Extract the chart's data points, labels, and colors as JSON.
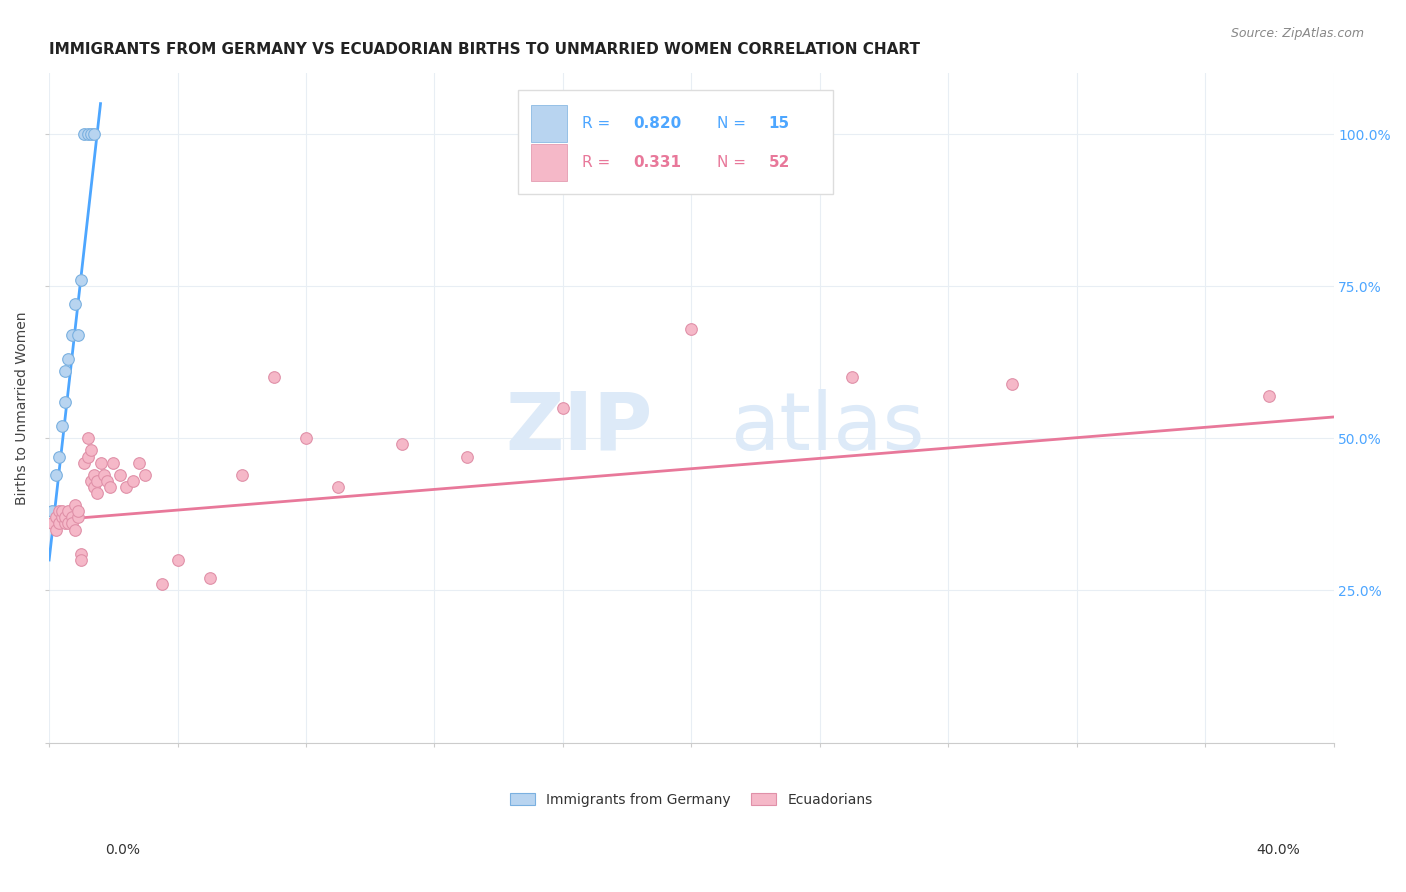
{
  "title": "IMMIGRANTS FROM GERMANY VS ECUADORIAN BIRTHS TO UNMARRIED WOMEN CORRELATION CHART",
  "source": "Source: ZipAtlas.com",
  "ylabel": "Births to Unmarried Women",
  "legend_stats_blue": {
    "R": "0.820",
    "N": "15"
  },
  "legend_stats_pink": {
    "R": "0.331",
    "N": "52"
  },
  "blue_scatter_x": [
    0.001,
    0.002,
    0.003,
    0.004,
    0.005,
    0.005,
    0.006,
    0.007,
    0.008,
    0.009,
    0.01,
    0.011,
    0.012,
    0.013,
    0.014
  ],
  "blue_scatter_y": [
    0.38,
    0.44,
    0.47,
    0.52,
    0.56,
    0.61,
    0.63,
    0.67,
    0.72,
    0.67,
    0.76,
    1.0,
    1.0,
    1.0,
    1.0
  ],
  "blue_line_x": [
    0.0,
    0.016
  ],
  "blue_line_y": [
    0.3,
    1.05
  ],
  "pink_scatter_x": [
    0.001,
    0.002,
    0.002,
    0.003,
    0.003,
    0.004,
    0.004,
    0.005,
    0.005,
    0.006,
    0.006,
    0.007,
    0.007,
    0.008,
    0.008,
    0.009,
    0.009,
    0.01,
    0.01,
    0.011,
    0.012,
    0.012,
    0.013,
    0.013,
    0.014,
    0.014,
    0.015,
    0.015,
    0.016,
    0.017,
    0.018,
    0.019,
    0.02,
    0.022,
    0.024,
    0.026,
    0.028,
    0.03,
    0.035,
    0.04,
    0.05,
    0.06,
    0.07,
    0.08,
    0.09,
    0.11,
    0.13,
    0.16,
    0.2,
    0.25,
    0.3,
    0.38
  ],
  "pink_scatter_y": [
    0.36,
    0.35,
    0.37,
    0.36,
    0.38,
    0.37,
    0.38,
    0.36,
    0.37,
    0.36,
    0.38,
    0.37,
    0.36,
    0.35,
    0.39,
    0.37,
    0.38,
    0.31,
    0.3,
    0.46,
    0.47,
    0.5,
    0.43,
    0.48,
    0.42,
    0.44,
    0.43,
    0.41,
    0.46,
    0.44,
    0.43,
    0.42,
    0.46,
    0.44,
    0.42,
    0.43,
    0.46,
    0.44,
    0.26,
    0.3,
    0.27,
    0.44,
    0.6,
    0.5,
    0.42,
    0.49,
    0.47,
    0.55,
    0.68,
    0.6,
    0.59,
    0.57
  ],
  "pink_line_x": [
    0.0,
    0.4
  ],
  "pink_line_y": [
    0.365,
    0.535
  ],
  "xlim": [
    0.0,
    0.4
  ],
  "ylim": [
    0.0,
    1.1
  ],
  "xticks": [
    0.0,
    0.04,
    0.08,
    0.12,
    0.16,
    0.2,
    0.24,
    0.28,
    0.32,
    0.36,
    0.4
  ],
  "yticks": [
    0.0,
    0.25,
    0.5,
    0.75,
    1.0
  ],
  "right_ytick_labels": [
    "25.0%",
    "50.0%",
    "75.0%",
    "100.0%"
  ],
  "blue_scatter_color": "#b8d4f0",
  "blue_edge_color": "#7ab0e0",
  "blue_line_color": "#4da6ff",
  "pink_scatter_color": "#f5b8c8",
  "pink_edge_color": "#e090a8",
  "pink_line_color": "#e8789a",
  "right_axis_color": "#4da6ff",
  "grid_color": "#e8eef4",
  "title_fontsize": 11,
  "background_color": "#ffffff",
  "watermark_zip_color": "#ddeaf8",
  "watermark_atlas_color": "#ddeaf8"
}
